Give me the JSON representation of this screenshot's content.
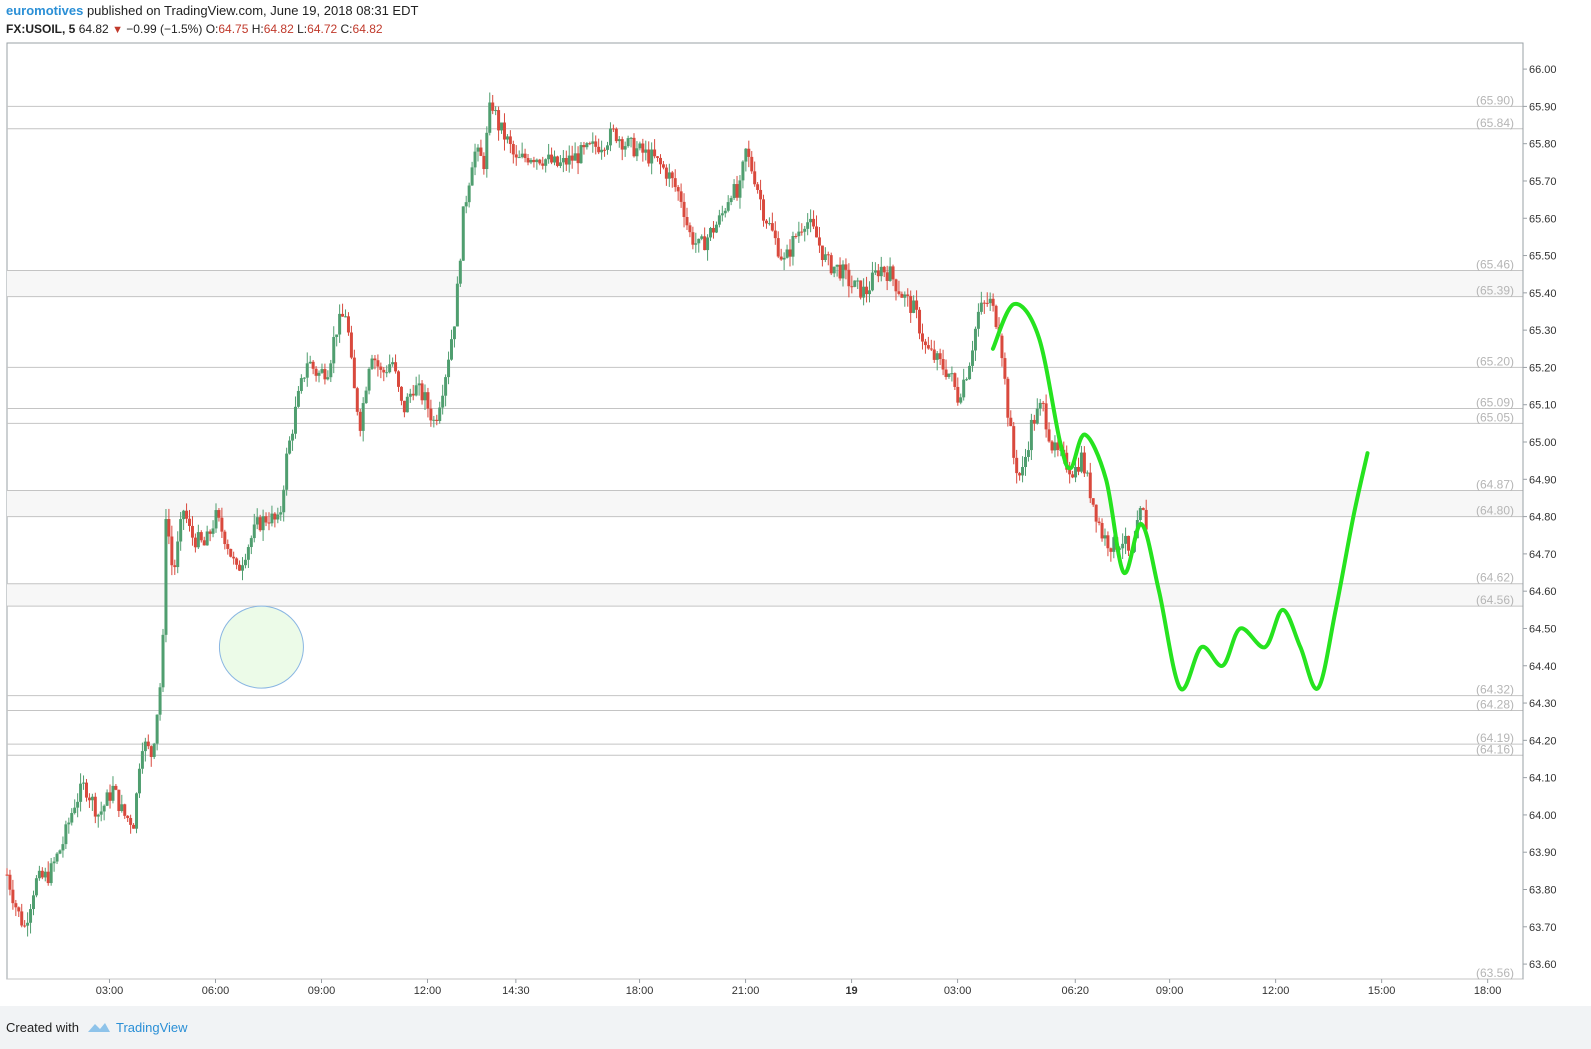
{
  "header": {
    "author": "euromotives",
    "published": "published on TradingView.com, June 19, 2018 08:31 EDT",
    "symbol": "FX:USOIL, 5",
    "last": "64.82",
    "arrow": "▼",
    "change": "−0.99 (−1.5%)",
    "o_label": "O:",
    "o_value": "64.75",
    "h_label": "H:",
    "h_value": "64.82",
    "l_label": "L:",
    "l_value": "64.72",
    "c_label": "C:",
    "c_value": "64.82"
  },
  "footer": {
    "created_with": "Created with",
    "brand": "TradingView"
  },
  "colors": {
    "up": "#4f9e6f",
    "down": "#d9493d",
    "level": "#c4c4c4",
    "level_label": "#b5b5b5",
    "zone_fill": "#f7f7f7",
    "projection": "#26e31f",
    "circle_fill": "#ecfbe8",
    "circle_stroke": "#8ab6e2",
    "axis_text": "#333333"
  },
  "chart_data": {
    "type": "candlestick",
    "symbol": "FX:USOIL",
    "interval": "5",
    "ylim": [
      63.56,
      66.07
    ],
    "y_ticks": [
      "66.00",
      "65.90",
      "65.80",
      "65.70",
      "65.60",
      "65.50",
      "65.40",
      "65.30",
      "65.20",
      "65.10",
      "65.00",
      "64.90",
      "64.80",
      "64.70",
      "64.60",
      "64.50",
      "64.40",
      "64.30",
      "64.20",
      "64.10",
      "64.00",
      "63.90",
      "63.80",
      "63.70",
      "63.60"
    ],
    "x_ticks": [
      {
        "label": "03:00",
        "t": 3.0,
        "bold": false
      },
      {
        "label": "06:00",
        "t": 6.0,
        "bold": false
      },
      {
        "label": "09:00",
        "t": 9.0,
        "bold": false
      },
      {
        "label": "12:00",
        "t": 12.0,
        "bold": false
      },
      {
        "label": "14:30",
        "t": 14.5,
        "bold": false
      },
      {
        "label": "18:00",
        "t": 18.0,
        "bold": false
      },
      {
        "label": "21:00",
        "t": 21.0,
        "bold": false
      },
      {
        "label": "19",
        "t": 24.0,
        "bold": true
      },
      {
        "label": "03:00",
        "t": 27.0,
        "bold": false
      },
      {
        "label": "06:20",
        "t": 30.33,
        "bold": false
      },
      {
        "label": "09:00",
        "t": 33.0,
        "bold": false
      },
      {
        "label": "12:00",
        "t": 36.0,
        "bold": false
      },
      {
        "label": "15:00",
        "t": 39.0,
        "bold": false
      },
      {
        "label": "18:00",
        "t": 42.0,
        "bold": false
      }
    ],
    "x_range": [
      0.1,
      43.0
    ],
    "horizontal_levels": [
      "65.90",
      "65.84",
      "65.46",
      "65.39",
      "65.20",
      "65.09",
      "65.05",
      "64.87",
      "64.80",
      "64.62",
      "64.56",
      "64.32",
      "64.28",
      "64.19",
      "64.16",
      "63.56"
    ],
    "zones": [
      [
        65.39,
        65.46
      ],
      [
        64.8,
        64.87
      ],
      [
        64.56,
        64.62
      ]
    ],
    "price_path": [
      [
        0.1,
        63.84
      ],
      [
        0.4,
        63.74
      ],
      [
        0.6,
        63.7
      ],
      [
        0.9,
        63.82
      ],
      [
        1.3,
        63.84
      ],
      [
        1.7,
        63.93
      ],
      [
        2.0,
        64.03
      ],
      [
        2.3,
        64.08
      ],
      [
        2.7,
        64.0
      ],
      [
        3.1,
        64.07
      ],
      [
        3.4,
        64.0
      ],
      [
        3.7,
        63.98
      ],
      [
        3.9,
        64.2
      ],
      [
        4.2,
        64.16
      ],
      [
        4.5,
        64.4
      ],
      [
        4.6,
        64.82
      ],
      [
        4.8,
        64.64
      ],
      [
        5.1,
        64.82
      ],
      [
        5.3,
        64.75
      ],
      [
        5.7,
        64.72
      ],
      [
        6.0,
        64.8
      ],
      [
        6.3,
        64.74
      ],
      [
        6.6,
        64.65
      ],
      [
        6.9,
        64.72
      ],
      [
        7.2,
        64.78
      ],
      [
        7.5,
        64.8
      ],
      [
        7.8,
        64.78
      ],
      [
        8.0,
        64.95
      ],
      [
        8.3,
        65.1
      ],
      [
        8.6,
        65.22
      ],
      [
        8.9,
        65.18
      ],
      [
        9.2,
        65.2
      ],
      [
        9.4,
        65.3
      ],
      [
        9.7,
        65.35
      ],
      [
        9.9,
        65.15
      ],
      [
        10.1,
        65.05
      ],
      [
        10.4,
        65.25
      ],
      [
        10.7,
        65.18
      ],
      [
        11.0,
        65.22
      ],
      [
        11.3,
        65.08
      ],
      [
        11.6,
        65.15
      ],
      [
        11.9,
        65.12
      ],
      [
        12.2,
        65.05
      ],
      [
        12.5,
        65.18
      ],
      [
        12.8,
        65.35
      ],
      [
        13.0,
        65.6
      ],
      [
        13.3,
        65.78
      ],
      [
        13.6,
        65.75
      ],
      [
        13.8,
        65.92
      ],
      [
        14.0,
        65.85
      ],
      [
        14.3,
        65.8
      ],
      [
        14.5,
        65.75
      ],
      [
        14.9,
        65.77
      ],
      [
        15.3,
        65.76
      ],
      [
        15.7,
        65.74
      ],
      [
        16.1,
        65.76
      ],
      [
        16.5,
        65.78
      ],
      [
        16.9,
        65.8
      ],
      [
        17.3,
        65.83
      ],
      [
        17.6,
        65.8
      ],
      [
        18.0,
        65.78
      ],
      [
        18.4,
        65.76
      ],
      [
        18.8,
        65.72
      ],
      [
        19.2,
        65.65
      ],
      [
        19.4,
        65.56
      ],
      [
        19.7,
        65.52
      ],
      [
        20.0,
        65.56
      ],
      [
        20.3,
        65.6
      ],
      [
        20.6,
        65.68
      ],
      [
        20.8,
        65.65
      ],
      [
        21.0,
        65.78
      ],
      [
        21.3,
        65.7
      ],
      [
        21.5,
        65.62
      ],
      [
        21.8,
        65.55
      ],
      [
        22.1,
        65.48
      ],
      [
        22.4,
        65.55
      ],
      [
        22.7,
        65.6
      ],
      [
        23.0,
        65.55
      ],
      [
        23.3,
        65.48
      ],
      [
        23.7,
        65.46
      ],
      [
        24.0,
        65.42
      ],
      [
        24.4,
        65.4
      ],
      [
        24.8,
        65.47
      ],
      [
        25.1,
        65.45
      ],
      [
        25.4,
        65.4
      ],
      [
        25.8,
        65.35
      ],
      [
        26.1,
        65.25
      ],
      [
        26.4,
        65.22
      ],
      [
        26.8,
        65.18
      ],
      [
        27.0,
        65.12
      ],
      [
        27.3,
        65.2
      ],
      [
        27.6,
        65.35
      ],
      [
        27.9,
        65.38
      ],
      [
        28.2,
        65.3
      ],
      [
        28.4,
        65.1
      ],
      [
        28.6,
        64.95
      ],
      [
        28.8,
        64.9
      ],
      [
        29.1,
        65.05
      ],
      [
        29.4,
        65.1
      ],
      [
        29.7,
        64.98
      ],
      [
        30.0,
        64.95
      ],
      [
        30.3,
        64.92
      ],
      [
        30.5,
        64.96
      ],
      [
        30.8,
        64.85
      ],
      [
        31.1,
        64.75
      ],
      [
        31.4,
        64.72
      ],
      [
        31.7,
        64.74
      ],
      [
        31.9,
        64.68
      ],
      [
        32.2,
        64.82
      ],
      [
        32.4,
        64.76
      ]
    ],
    "projection_path": [
      [
        28.0,
        65.25
      ],
      [
        28.6,
        65.37
      ],
      [
        29.3,
        65.28
      ],
      [
        29.9,
        65.0
      ],
      [
        30.2,
        64.93
      ],
      [
        30.6,
        65.02
      ],
      [
        31.2,
        64.9
      ],
      [
        31.7,
        64.65
      ],
      [
        32.2,
        64.78
      ],
      [
        32.7,
        64.6
      ],
      [
        33.3,
        64.34
      ],
      [
        33.9,
        64.45
      ],
      [
        34.5,
        64.4
      ],
      [
        35.0,
        64.5
      ],
      [
        35.7,
        64.45
      ],
      [
        36.2,
        64.55
      ],
      [
        36.7,
        64.45
      ],
      [
        37.2,
        64.34
      ],
      [
        37.7,
        64.55
      ],
      [
        38.2,
        64.8
      ],
      [
        38.6,
        64.97
      ]
    ],
    "circle": {
      "t": 7.3,
      "price": 64.45
    }
  }
}
